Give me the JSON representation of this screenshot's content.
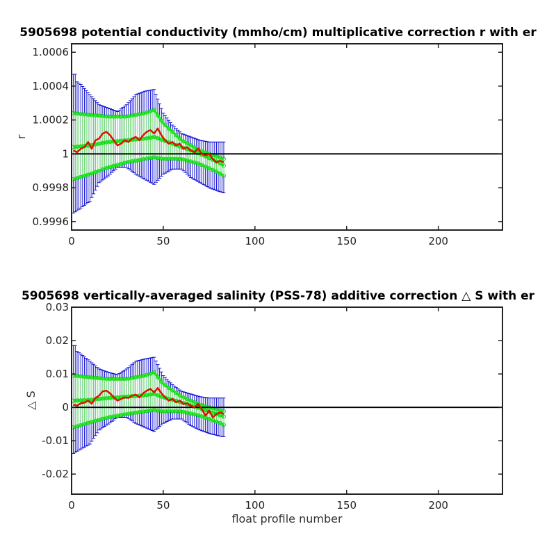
{
  "chart_data": [
    {
      "type": "line",
      "title": "5905698 potential conductivity (mmho/cm) multiplicative correction r with er",
      "xlabel": "",
      "ylabel": "r",
      "xlim": [
        0,
        235
      ],
      "ylim": [
        0.99955,
        1.00065
      ],
      "xticks": [
        0,
        50,
        100,
        150,
        200
      ],
      "xtick_labels": [
        "0",
        "50",
        "100",
        "150",
        "200"
      ],
      "yticks": [
        0.9996,
        0.9998,
        1,
        1.0002,
        1.0004,
        1.0006
      ],
      "ytick_labels": [
        "0.9996",
        "0.9998",
        "1",
        "1.0002",
        "1.0004",
        "1.0006"
      ],
      "reference_line": 1,
      "grid": false,
      "colors": {
        "mean": "#dd1100",
        "error_envelope": "#0000cc",
        "green_bands": "#22ee22",
        "reference": "#000000"
      },
      "series": [
        {
          "role": "mean",
          "x": [
            1,
            3,
            5,
            7,
            9,
            11,
            13,
            15,
            17,
            19,
            21,
            23,
            25,
            27,
            29,
            31,
            33,
            35,
            37,
            39,
            41,
            43,
            45,
            47,
            49,
            51,
            53,
            55,
            57,
            59,
            61,
            63,
            65,
            67,
            69,
            71,
            73,
            75,
            77,
            79,
            81,
            83
          ],
          "y": [
            1.00002,
            1.00001,
            1.00003,
            1.00004,
            1.00007,
            1.00003,
            1.00008,
            1.00009,
            1.00012,
            1.00013,
            1.00011,
            1.00008,
            1.00005,
            1.00006,
            1.00008,
            1.00007,
            1.00009,
            1.0001,
            1.00008,
            1.00011,
            1.00013,
            1.00014,
            1.00012,
            1.00015,
            1.00011,
            1.00008,
            1.00006,
            1.00007,
            1.00005,
            1.00006,
            1.00003,
            1.00004,
            1.00002,
            1.00001,
            1.00003,
            1.0,
            0.99999,
            1.0,
            0.99997,
            0.99995,
            0.99996,
            0.99995
          ]
        },
        {
          "role": "green_center",
          "x": [
            1,
            10,
            20,
            30,
            40,
            45,
            50,
            60,
            70,
            80,
            83
          ],
          "y": [
            1.00004,
            1.00005,
            1.00007,
            1.00008,
            1.00009,
            1.0001,
            1.00008,
            1.00004,
            1.0,
            0.99995,
            0.99993
          ]
        },
        {
          "role": "green_upper",
          "x": [
            1,
            10,
            20,
            30,
            40,
            45,
            50,
            60,
            70,
            80,
            83
          ],
          "y": [
            1.00024,
            1.00023,
            1.00022,
            1.00022,
            1.00024,
            1.00026,
            1.00018,
            1.00008,
            1.00002,
            0.99998,
            0.99997
          ]
        },
        {
          "role": "green_lower",
          "x": [
            1,
            10,
            20,
            30,
            40,
            45,
            50,
            60,
            70,
            80,
            83
          ],
          "y": [
            0.99985,
            0.99988,
            0.99992,
            0.99995,
            0.99997,
            0.99998,
            0.99997,
            0.99997,
            0.99994,
            0.99989,
            0.99987
          ]
        },
        {
          "role": "error_upper",
          "x": [
            1,
            5,
            10,
            15,
            20,
            25,
            30,
            35,
            40,
            45,
            50,
            55,
            60,
            65,
            70,
            75,
            80,
            83
          ],
          "y": [
            1.00044,
            1.00041,
            1.00035,
            1.00029,
            1.00027,
            1.00025,
            1.00029,
            1.00035,
            1.00037,
            1.00038,
            1.00024,
            1.00017,
            1.00012,
            1.0001,
            1.00008,
            1.00007,
            1.00007,
            1.00007
          ],
          "whisker_top": 1.00047
        },
        {
          "role": "error_lower",
          "x": [
            1,
            5,
            10,
            15,
            20,
            25,
            30,
            35,
            40,
            45,
            50,
            55,
            60,
            65,
            70,
            75,
            80,
            83
          ],
          "y": [
            0.99965,
            0.99968,
            0.99972,
            0.99983,
            0.99987,
            0.99992,
            0.99992,
            0.99988,
            0.99985,
            0.99982,
            0.99988,
            0.99991,
            0.99991,
            0.99986,
            0.99983,
            0.9998,
            0.99978,
            0.99977
          ]
        }
      ]
    },
    {
      "type": "line",
      "title": "5905698 vertically-averaged salinity (PSS-78) additive correction △ S with er",
      "xlabel": "float profile number",
      "ylabel": "△ S",
      "xlim": [
        0,
        235
      ],
      "ylim": [
        -0.026,
        0.03
      ],
      "xticks": [
        0,
        50,
        100,
        150,
        200
      ],
      "xtick_labels": [
        "0",
        "50",
        "100",
        "150",
        "200"
      ],
      "yticks": [
        -0.02,
        -0.01,
        0,
        0.01,
        0.02,
        0.03
      ],
      "ytick_labels": [
        "-0.02",
        "-0.01",
        "0",
        "0.01",
        "0.02",
        "0.03"
      ],
      "reference_line": 0,
      "grid": false,
      "colors": {
        "mean": "#dd1100",
        "error_envelope": "#0000cc",
        "green_bands": "#22ee22",
        "reference": "#000000"
      },
      "series": [
        {
          "role": "mean",
          "x": [
            1,
            3,
            5,
            7,
            9,
            11,
            13,
            15,
            17,
            19,
            21,
            23,
            25,
            27,
            29,
            31,
            33,
            35,
            37,
            39,
            41,
            43,
            45,
            47,
            49,
            51,
            53,
            55,
            57,
            59,
            61,
            63,
            65,
            67,
            69,
            71,
            73,
            75,
            77,
            79,
            81,
            83
          ],
          "y": [
            0.0008,
            0.0005,
            0.0012,
            0.0014,
            0.002,
            0.0011,
            0.0028,
            0.0035,
            0.0048,
            0.005,
            0.0042,
            0.003,
            0.002,
            0.0025,
            0.003,
            0.0028,
            0.0035,
            0.0038,
            0.003,
            0.0042,
            0.005,
            0.0055,
            0.0045,
            0.0058,
            0.0042,
            0.003,
            0.002,
            0.0025,
            0.0015,
            0.002,
            0.001,
            0.0012,
            0.0005,
            0.0,
            0.001,
            -0.0005,
            -0.0025,
            -0.001,
            -0.003,
            -0.002,
            -0.0015,
            -0.002
          ]
        },
        {
          "role": "green_center",
          "x": [
            1,
            10,
            20,
            30,
            40,
            45,
            50,
            60,
            70,
            80,
            83
          ],
          "y": [
            0.002,
            0.0022,
            0.0028,
            0.0032,
            0.0036,
            0.004,
            0.003,
            0.0015,
            -0.0003,
            -0.0022,
            -0.0028
          ]
        },
        {
          "role": "green_upper",
          "x": [
            1,
            10,
            20,
            30,
            40,
            45,
            50,
            60,
            70,
            80,
            83
          ],
          "y": [
            0.0095,
            0.009,
            0.0085,
            0.0085,
            0.0095,
            0.0105,
            0.007,
            0.0032,
            0.0008,
            -0.0008,
            -0.0012
          ]
        },
        {
          "role": "green_lower",
          "x": [
            1,
            10,
            20,
            30,
            40,
            45,
            50,
            60,
            70,
            80,
            83
          ],
          "y": [
            -0.006,
            -0.0045,
            -0.003,
            -0.002,
            -0.0012,
            -0.0008,
            -0.0012,
            -0.0012,
            -0.0025,
            -0.0045,
            -0.0052
          ]
        },
        {
          "role": "error_upper",
          "x": [
            1,
            5,
            10,
            15,
            20,
            25,
            30,
            35,
            40,
            45,
            50,
            55,
            60,
            65,
            70,
            75,
            80,
            83
          ],
          "y": [
            0.0175,
            0.016,
            0.0138,
            0.0115,
            0.0105,
            0.0098,
            0.0115,
            0.0138,
            0.0145,
            0.015,
            0.0095,
            0.0068,
            0.0048,
            0.004,
            0.0032,
            0.0028,
            0.0028,
            0.0028
          ],
          "whisker_top": 0.0185
        },
        {
          "role": "error_lower",
          "x": [
            1,
            5,
            10,
            15,
            20,
            25,
            30,
            35,
            40,
            45,
            50,
            55,
            60,
            65,
            70,
            75,
            80,
            83
          ],
          "y": [
            -0.0138,
            -0.0125,
            -0.011,
            -0.0068,
            -0.005,
            -0.003,
            -0.003,
            -0.0048,
            -0.006,
            -0.0072,
            -0.0048,
            -0.0035,
            -0.0035,
            -0.0055,
            -0.0068,
            -0.0078,
            -0.0085,
            -0.0088
          ]
        }
      ]
    }
  ]
}
